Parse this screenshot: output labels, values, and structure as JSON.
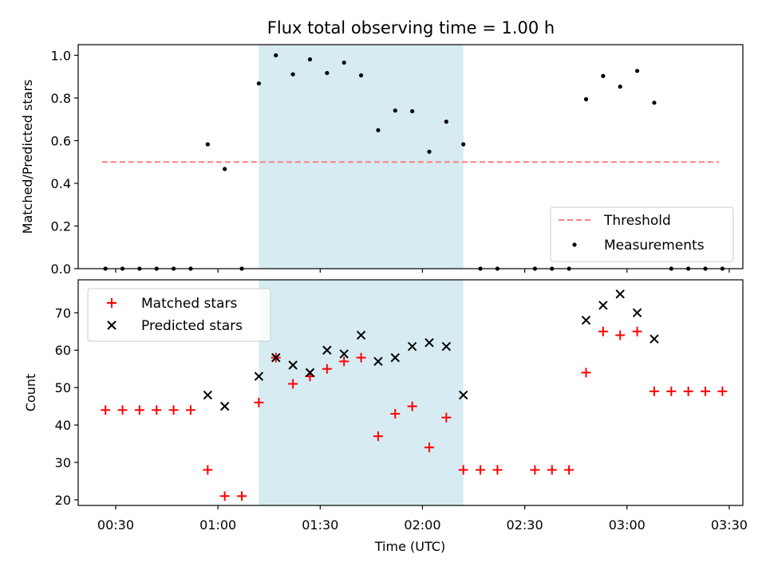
{
  "chart_data": [
    {
      "type": "scatter",
      "title": "Flux total observing time = 1.00 h",
      "xlabel": "",
      "ylabel": "Matched/Predicted stars",
      "x_unit": "time (UTC)",
      "xlim": [
        "00:19",
        "03:34"
      ],
      "ylim": [
        0,
        1.05
      ],
      "yticks": [
        "0.0",
        "0.2",
        "0.4",
        "0.6",
        "0.8",
        "1.0"
      ],
      "shaded_interval": [
        "01:12",
        "02:12"
      ],
      "legend_position": "lower-right",
      "series": [
        {
          "name": "Threshold",
          "style": "dashed-line",
          "color": "#ff7f7f",
          "x": [
            "00:26",
            "03:27"
          ],
          "values": [
            0.5,
            0.5
          ]
        },
        {
          "name": "Measurements",
          "style": "dots",
          "color": "#000000",
          "x": [
            "00:27",
            "00:32",
            "00:37",
            "00:42",
            "00:47",
            "00:52",
            "00:57",
            "01:02",
            "01:07",
            "01:12",
            "01:17",
            "01:22",
            "01:27",
            "01:32",
            "01:37",
            "01:42",
            "01:47",
            "01:52",
            "01:57",
            "02:02",
            "02:07",
            "02:12",
            "02:17",
            "02:22",
            "02:33",
            "02:38",
            "02:43",
            "02:48",
            "02:53",
            "02:58",
            "03:03",
            "03:08",
            "03:13",
            "03:18",
            "03:23",
            "03:28"
          ],
          "values": [
            0,
            0,
            0,
            0,
            0,
            0,
            0.583,
            0.467,
            0,
            0.868,
            1.0,
            0.911,
            0.981,
            0.917,
            0.966,
            0.906,
            0.649,
            0.741,
            0.738,
            0.548,
            0.689,
            0.583,
            0,
            0,
            0,
            0,
            0,
            0.794,
            0.903,
            0.853,
            0.927,
            0.778,
            0,
            0,
            0,
            0
          ]
        }
      ]
    },
    {
      "type": "scatter",
      "title": "",
      "xlabel": "Time (UTC)",
      "ylabel": "Count",
      "xlim": [
        "00:19",
        "03:34"
      ],
      "ylim": [
        18.5,
        78.8
      ],
      "yticks": [
        "20",
        "30",
        "40",
        "50",
        "60",
        "70"
      ],
      "xticks": [
        "00:30",
        "01:00",
        "01:30",
        "02:00",
        "02:30",
        "03:00",
        "03:30"
      ],
      "shaded_interval": [
        "01:12",
        "02:12"
      ],
      "legend_position": "upper-left",
      "series": [
        {
          "name": "Matched stars",
          "style": "plus",
          "color": "#ff0000",
          "x": [
            "00:27",
            "00:32",
            "00:37",
            "00:42",
            "00:47",
            "00:52",
            "00:57",
            "01:02",
            "01:07",
            "01:12",
            "01:17",
            "01:22",
            "01:27",
            "01:32",
            "01:37",
            "01:42",
            "01:47",
            "01:52",
            "01:57",
            "02:02",
            "02:07",
            "02:12",
            "02:17",
            "02:22",
            "02:33",
            "02:38",
            "02:43",
            "02:48",
            "02:53",
            "02:58",
            "03:03",
            "03:08",
            "03:13",
            "03:18",
            "03:23",
            "03:28"
          ],
          "values": [
            44,
            44,
            44,
            44,
            44,
            44,
            28,
            21,
            21,
            46,
            58,
            51,
            53,
            55,
            57,
            58,
            37,
            43,
            45,
            34,
            42,
            28,
            28,
            28,
            28,
            28,
            28,
            54,
            65,
            64,
            65,
            49,
            49,
            49,
            49,
            49
          ]
        },
        {
          "name": "Predicted stars",
          "style": "cross",
          "color": "#000000",
          "x": [
            "00:57",
            "01:02",
            "01:12",
            "01:17",
            "01:22",
            "01:27",
            "01:32",
            "01:37",
            "01:42",
            "01:47",
            "01:52",
            "01:57",
            "02:02",
            "02:07",
            "02:12",
            "02:48",
            "02:53",
            "02:58",
            "03:03",
            "03:08"
          ],
          "values": [
            48,
            45,
            53,
            58,
            56,
            54,
            60,
            59,
            64,
            57,
            58,
            61,
            62,
            61,
            48,
            68,
            72,
            75,
            70,
            63
          ]
        }
      ]
    }
  ]
}
